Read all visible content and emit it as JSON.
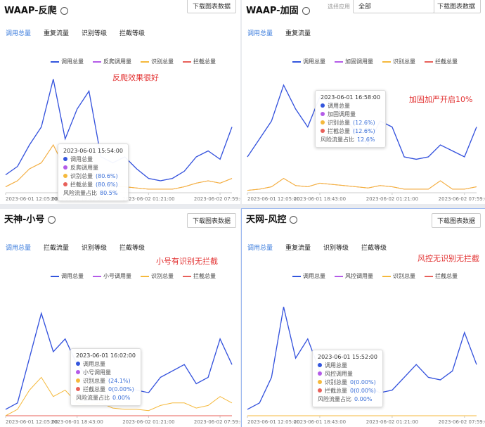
{
  "panels": [
    {
      "title": "WAAP-反爬",
      "button": "下载图表数据",
      "tabs": [
        "调用总量",
        "重复流量",
        "识别等级",
        "拦截等级"
      ],
      "annotation": "反爬效果很好",
      "tooltip": {
        "time": "2023-06-01 15:54:00",
        "rows": [
          {
            "label": "调用总量",
            "color": "#3355dd"
          },
          {
            "label": "反爬调用量",
            "color": "#b45be8"
          },
          {
            "label": "识别总量",
            "value": "(80.6%)",
            "color": "#f5b93c"
          },
          {
            "label": "拦截总量",
            "value": "(80.6%)",
            "color": "#e8605a"
          },
          {
            "label": "风险流量占比",
            "value": "80.5%"
          }
        ]
      },
      "chart": {
        "type": "line",
        "xlim": [
          0,
          19
        ],
        "ylim": [
          0,
          100
        ],
        "xticks": [
          {
            "value": 0,
            "label": "2023-06-01 12:05:00"
          },
          {
            "value": 6,
            "label": "2023-06-01 18:43:00"
          },
          {
            "value": 12,
            "label": "2023-06-02 01:21:00"
          },
          {
            "value": 18,
            "label": "2023-06-02 07:59:00"
          }
        ],
        "series": [
          {
            "name": "调用总量",
            "color": "#3355dd",
            "values": [
              15,
              22,
              40,
              55,
              95,
              45,
              70,
              85,
              30,
              25,
              30,
              20,
              12,
              10,
              12,
              18,
              30,
              35,
              28,
              55
            ]
          },
          {
            "name": "反爬调用量",
            "color": "#b45be8",
            "values": [
              15,
              22,
              40,
              55,
              95,
              45,
              70,
              85,
              30,
              25,
              30,
              20,
              12,
              10,
              12,
              18,
              30,
              35,
              28,
              55
            ]
          },
          {
            "name": "识别总量",
            "color": "#f5b93c",
            "values": [
              5,
              10,
              20,
              25,
              40,
              20,
              30,
              20,
              10,
              5,
              5,
              4,
              3,
              3,
              3,
              5,
              8,
              10,
              8,
              12
            ]
          },
          {
            "name": "拦截总量",
            "color": "#e8605a",
            "values": [
              5,
              10,
              20,
              25,
              40,
              20,
              30,
              20,
              10,
              5,
              5,
              4,
              3,
              3,
              3,
              5,
              8,
              10,
              8,
              12
            ]
          }
        ]
      }
    },
    {
      "title": "WAAP-加固",
      "button": "下载图表数据",
      "select": {
        "placeholder": "选择应用",
        "value": "全部"
      },
      "tabs": [
        "调用总量",
        "重复流量"
      ],
      "annotation": "加固加严开启10%",
      "tooltip": {
        "time": "2023-06-01 16:58:00",
        "rows": [
          {
            "label": "调用总量",
            "color": "#3355dd"
          },
          {
            "label": "加固调用量",
            "color": "#b45be8"
          },
          {
            "label": "识别总量",
            "value": "(12.6%)",
            "color": "#f5b93c"
          },
          {
            "label": "拦截总量",
            "value": "(12.6%)",
            "color": "#e8605a"
          },
          {
            "label": "风险流量占比",
            "value": "12.6%"
          }
        ]
      },
      "chart": {
        "type": "line",
        "xlim": [
          0,
          19
        ],
        "ylim": [
          0,
          100
        ],
        "xticks": [
          {
            "value": 0,
            "label": "2023-06-01 12:05:00"
          },
          {
            "value": 6,
            "label": "2023-06-01 18:43:00"
          },
          {
            "value": 12,
            "label": "2023-06-02 01:21:00"
          },
          {
            "value": 18,
            "label": "2023-06-02 07:59:00"
          }
        ],
        "series": [
          {
            "name": "调用总量",
            "color": "#3355dd",
            "values": [
              30,
              45,
              60,
              90,
              70,
              55,
              80,
              75,
              65,
              50,
              40,
              60,
              55,
              30,
              28,
              30,
              40,
              35,
              30,
              55
            ]
          },
          {
            "name": "加固调用量",
            "color": "#b45be8",
            "values": [
              30,
              45,
              60,
              90,
              70,
              55,
              80,
              75,
              65,
              50,
              40,
              60,
              55,
              30,
              28,
              30,
              40,
              35,
              30,
              55
            ]
          },
          {
            "name": "识别总量",
            "color": "#f5b93c",
            "values": [
              2,
              3,
              5,
              12,
              6,
              5,
              8,
              7,
              6,
              5,
              4,
              6,
              5,
              3,
              3,
              3,
              10,
              3,
              3,
              5
            ]
          },
          {
            "name": "拦截总量",
            "color": "#e8605a",
            "values": [
              2,
              3,
              5,
              12,
              6,
              5,
              8,
              7,
              6,
              5,
              4,
              6,
              5,
              3,
              3,
              3,
              10,
              3,
              3,
              5
            ]
          }
        ]
      }
    },
    {
      "title": "天神-小号",
      "button": "下载图表数据",
      "tabs": [
        "调用总量",
        "拦截流量",
        "识别等级",
        "拦截等级"
      ],
      "annotation": "小号有识别无拦截",
      "tooltip": {
        "time": "2023-06-01 16:02:00",
        "rows": [
          {
            "label": "调用总量",
            "color": "#3355dd"
          },
          {
            "label": "小号调用量",
            "color": "#b45be8"
          },
          {
            "label": "识别总量",
            "value": "(24.1%)",
            "color": "#f5b93c"
          },
          {
            "label": "拦截总量",
            "value": "0(0.00%)",
            "color": "#e8605a"
          },
          {
            "label": "风险流量占比",
            "value": "0.00%"
          }
        ]
      },
      "chart": {
        "type": "line",
        "xlim": [
          0,
          19
        ],
        "ylim": [
          0,
          100
        ],
        "xticks": [
          {
            "value": 0,
            "label": "2023-06-01 12:05:00"
          },
          {
            "value": 6,
            "label": "2023-06-01 18:43:00"
          },
          {
            "value": 12,
            "label": "2023-06-02 01:21:00"
          },
          {
            "value": 18,
            "label": "2023-06-02 07:59:00"
          }
        ],
        "series": [
          {
            "name": "调用总量",
            "color": "#3355dd",
            "values": [
              5,
              10,
              45,
              80,
              50,
              60,
              40,
              30,
              35,
              25,
              22,
              20,
              18,
              30,
              35,
              40,
              25,
              30,
              60,
              40
            ]
          },
          {
            "name": "小号调用量",
            "color": "#b45be8",
            "values": [
              5,
              10,
              45,
              80,
              50,
              60,
              40,
              30,
              35,
              25,
              22,
              20,
              18,
              30,
              35,
              40,
              25,
              30,
              60,
              40
            ]
          },
          {
            "name": "识别总量",
            "color": "#f5b93c",
            "values": [
              0,
              5,
              20,
              30,
              15,
              20,
              10,
              8,
              10,
              6,
              5,
              5,
              4,
              8,
              10,
              10,
              6,
              8,
              15,
              10
            ]
          },
          {
            "name": "拦截总量",
            "color": "#e8605a",
            "values": [
              0,
              0,
              0,
              0,
              0,
              0,
              0,
              0,
              0,
              0,
              0,
              0,
              0,
              0,
              0,
              0,
              0,
              0,
              0,
              0
            ]
          }
        ]
      }
    },
    {
      "title": "天网-风控",
      "button": "下载图表数据",
      "tabs": [
        "调用总量",
        "重复流量",
        "识别等级",
        "拦截等级"
      ],
      "annotation": "风控无识别无拦截",
      "tooltip": {
        "time": "2023-06-01 15:52:00",
        "rows": [
          {
            "label": "调用总量",
            "color": "#3355dd"
          },
          {
            "label": "风控调用量",
            "color": "#b45be8"
          },
          {
            "label": "识别总量",
            "value": "0(0.00%)",
            "color": "#f5b93c"
          },
          {
            "label": "拦截总量",
            "value": "0(0.00%)",
            "color": "#e8605a"
          },
          {
            "label": "风险流量占比",
            "value": "0.00%"
          }
        ]
      },
      "chart": {
        "type": "line",
        "xlim": [
          0,
          19
        ],
        "ylim": [
          0,
          100
        ],
        "xticks": [
          {
            "value": 0,
            "label": "2023-06-01 12:05:00"
          },
          {
            "value": 6,
            "label": "2023-06-01 18:43:00"
          },
          {
            "value": 12,
            "label": "2023-06-02 01:21:00"
          },
          {
            "value": 18,
            "label": "2023-06-02 07:59:00"
          }
        ],
        "series": [
          {
            "name": "调用总量",
            "color": "#3355dd",
            "values": [
              5,
              10,
              30,
              85,
              45,
              60,
              35,
              30,
              25,
              20,
              22,
              18,
              20,
              30,
              40,
              30,
              28,
              35,
              65,
              40
            ]
          },
          {
            "name": "风控调用量",
            "color": "#b45be8",
            "values": [
              5,
              10,
              30,
              85,
              45,
              60,
              35,
              30,
              25,
              20,
              22,
              18,
              20,
              30,
              40,
              30,
              28,
              35,
              65,
              40
            ]
          },
          {
            "name": "识别总量",
            "color": "#f5b93c",
            "values": [
              0,
              0,
              0,
              0,
              0,
              0,
              0,
              0,
              0,
              0,
              0,
              0,
              0,
              0,
              0,
              0,
              0,
              0,
              0,
              0
            ]
          },
          {
            "name": "拦截总量",
            "color": "#e8605a",
            "values": [
              0,
              0,
              0,
              0,
              0,
              0,
              0,
              0,
              0,
              0,
              0,
              0,
              0,
              0,
              0,
              0,
              0,
              0,
              0,
              0
            ]
          }
        ]
      }
    }
  ]
}
